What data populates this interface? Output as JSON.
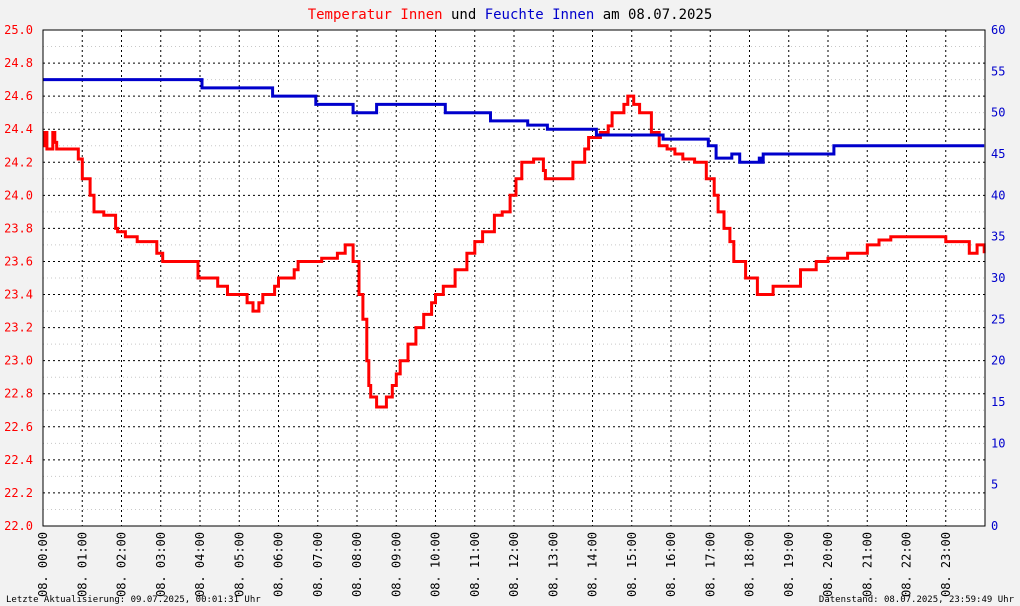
{
  "chart_data": {
    "type": "line",
    "title_parts": [
      {
        "text": "Temperatur Innen",
        "color": "#ff0000"
      },
      {
        "text": " und ",
        "color": "#000000"
      },
      {
        "text": "Feuchte Innen",
        "color": "#0000cc"
      },
      {
        "text": " am 08.07.2025",
        "color": "#000000"
      }
    ],
    "x_unit": "hour of day",
    "x_range": [
      0,
      24
    ],
    "x_tick_labels": [
      "08. 00:00",
      "08. 01:00",
      "08. 02:00",
      "08. 03:00",
      "08. 04:00",
      "08. 05:00",
      "08. 06:00",
      "08. 07:00",
      "08. 08:00",
      "08. 09:00",
      "08. 10:00",
      "08. 11:00",
      "08. 12:00",
      "08. 13:00",
      "08. 14:00",
      "08. 15:00",
      "08. 16:00",
      "08. 17:00",
      "08. 18:00",
      "08. 19:00",
      "08. 20:00",
      "08. 21:00",
      "08. 22:00",
      "08. 23:00"
    ],
    "y_left": {
      "range": [
        22.0,
        25.0
      ],
      "ticks": [
        "22.0",
        "22.2",
        "22.4",
        "22.6",
        "22.8",
        "23.0",
        "23.2",
        "23.4",
        "23.6",
        "23.8",
        "24.0",
        "24.2",
        "24.4",
        "24.6",
        "24.8",
        "25.0"
      ],
      "color": "#ff0000"
    },
    "y_right": {
      "range": [
        0,
        60
      ],
      "ticks": [
        "0",
        "5",
        "10",
        "15",
        "20",
        "25",
        "30",
        "35",
        "40",
        "45",
        "50",
        "55",
        "60"
      ],
      "color": "#0000cc"
    },
    "grid": true,
    "series": [
      {
        "axis": "left",
        "color": "#ff0000",
        "x": [
          0.0,
          0.05,
          0.1,
          0.25,
          0.3,
          0.35,
          0.9,
          1.0,
          1.2,
          1.3,
          1.55,
          1.85,
          1.9,
          2.1,
          2.4,
          2.6,
          2.9,
          3.05,
          3.3,
          3.4,
          3.6,
          3.95,
          4.2,
          4.45,
          4.7,
          5.1,
          5.2,
          5.35,
          5.5,
          5.6,
          5.9,
          6.0,
          6.4,
          6.5,
          6.9,
          7.1,
          7.5,
          7.7,
          7.9,
          8.05,
          8.15,
          8.25,
          8.3,
          8.35,
          8.5,
          8.6,
          8.75,
          8.9,
          9.0,
          9.1,
          9.3,
          9.5,
          9.7,
          9.9,
          10.0,
          10.2,
          10.5,
          10.8,
          11.0,
          11.2,
          11.5,
          11.7,
          11.9,
          12.05,
          12.2,
          12.5,
          12.75,
          12.8,
          13.2,
          13.5,
          13.8,
          13.9,
          14.2,
          14.4,
          14.5,
          14.8,
          14.9,
          15.05,
          15.2,
          15.5,
          15.7,
          15.9,
          16.1,
          16.3,
          16.6,
          16.9,
          17.1,
          17.2,
          17.35,
          17.5,
          17.6,
          17.9,
          18.2,
          18.6,
          19.3,
          19.7,
          20.0,
          20.5,
          21.0,
          21.3,
          21.6,
          23.0,
          23.3,
          23.6,
          23.8,
          23.98
        ],
        "values": [
          24.3,
          24.38,
          24.28,
          24.38,
          24.32,
          24.28,
          24.22,
          24.1,
          24.0,
          23.9,
          23.88,
          23.8,
          23.78,
          23.75,
          23.72,
          23.72,
          23.65,
          23.6,
          23.6,
          23.6,
          23.6,
          23.5,
          23.5,
          23.45,
          23.4,
          23.4,
          23.35,
          23.3,
          23.35,
          23.4,
          23.45,
          23.5,
          23.55,
          23.6,
          23.6,
          23.62,
          23.65,
          23.7,
          23.6,
          23.4,
          23.25,
          23.0,
          22.85,
          22.78,
          22.72,
          22.72,
          22.78,
          22.85,
          22.92,
          23.0,
          23.1,
          23.2,
          23.28,
          23.35,
          23.4,
          23.45,
          23.55,
          23.65,
          23.72,
          23.78,
          23.88,
          23.9,
          24.0,
          24.1,
          24.2,
          24.22,
          24.15,
          24.1,
          24.1,
          24.2,
          24.28,
          24.35,
          24.38,
          24.42,
          24.5,
          24.55,
          24.6,
          24.55,
          24.5,
          24.38,
          24.3,
          24.28,
          24.25,
          24.22,
          24.2,
          24.1,
          24.0,
          23.9,
          23.8,
          23.72,
          23.6,
          23.5,
          23.4,
          23.45,
          23.55,
          23.6,
          23.62,
          23.65,
          23.7,
          23.73,
          23.75,
          23.72,
          23.72,
          23.65,
          23.7,
          23.65
        ]
      },
      {
        "axis": "right",
        "color": "#0000cc",
        "x": [
          0.0,
          4.0,
          4.05,
          5.8,
          5.85,
          6.9,
          6.95,
          7.85,
          7.9,
          8.45,
          8.5,
          10.2,
          10.25,
          11.35,
          11.4,
          12.3,
          12.35,
          12.8,
          12.85,
          13.0,
          13.05,
          14.05,
          14.1,
          15.75,
          15.8,
          16.85,
          16.95,
          17.1,
          17.15,
          17.5,
          17.55,
          17.7,
          17.75,
          18.2,
          18.25,
          18.3,
          18.35,
          20.1,
          20.15,
          23.98
        ],
        "values": [
          54,
          54,
          53,
          53,
          52,
          52,
          51,
          51,
          50,
          50,
          51,
          51,
          50,
          50,
          49,
          49,
          48.5,
          48.5,
          48,
          48,
          48,
          48,
          47.3,
          47.3,
          46.8,
          46.8,
          46,
          46,
          44.5,
          44.5,
          45,
          45,
          44,
          44,
          44.5,
          44,
          45,
          45,
          46,
          46
        ]
      }
    ],
    "footer_left": "Letzte Aktualisierung: 09.07.2025, 00:01:31 Uhr",
    "footer_right": "Datenstand: 08.07.2025, 23:59:49 Uhr"
  }
}
